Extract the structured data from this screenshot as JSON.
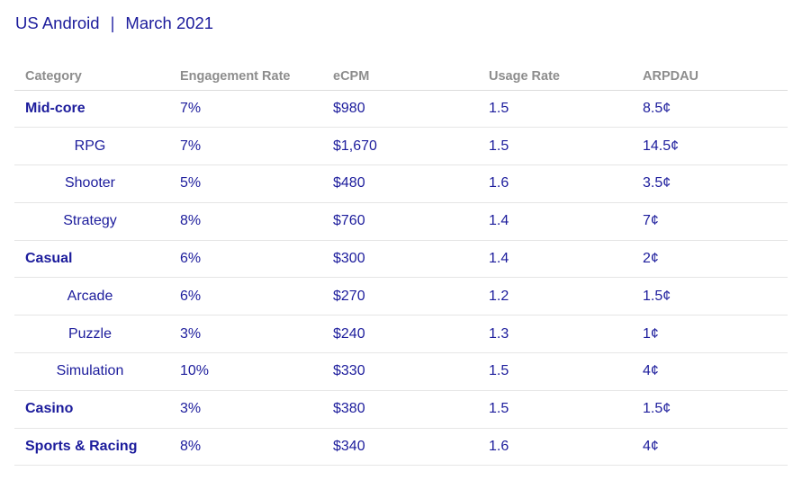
{
  "header": {
    "title_left": "US Android",
    "separator": "|",
    "title_right": "March 2021"
  },
  "colors": {
    "text_navy": "#1c1c9c",
    "header_gray": "#8d8d8d",
    "divider": "#e6e6e6",
    "background": "#ffffff"
  },
  "chart_data": {
    "type": "table",
    "title": "US Android | March 2021",
    "columns": [
      "Category",
      "Engagement Rate",
      "eCPM",
      "Usage Rate",
      "ARPDAU"
    ],
    "rows": [
      {
        "category": "Mid-core",
        "level": "parent",
        "engagement_rate": "7%",
        "ecpm": "$980",
        "usage_rate": "1.5",
        "arpdau": "8.5¢"
      },
      {
        "category": "RPG",
        "level": "sub",
        "engagement_rate": "7%",
        "ecpm": "$1,670",
        "usage_rate": "1.5",
        "arpdau": "14.5¢"
      },
      {
        "category": "Shooter",
        "level": "sub",
        "engagement_rate": "5%",
        "ecpm": "$480",
        "usage_rate": "1.6",
        "arpdau": "3.5¢"
      },
      {
        "category": "Strategy",
        "level": "sub",
        "engagement_rate": "8%",
        "ecpm": "$760",
        "usage_rate": "1.4",
        "arpdau": "7¢"
      },
      {
        "category": "Casual",
        "level": "parent",
        "engagement_rate": "6%",
        "ecpm": "$300",
        "usage_rate": "1.4",
        "arpdau": "2¢"
      },
      {
        "category": "Arcade",
        "level": "sub",
        "engagement_rate": "6%",
        "ecpm": "$270",
        "usage_rate": "1.2",
        "arpdau": "1.5¢"
      },
      {
        "category": "Puzzle",
        "level": "sub",
        "engagement_rate": "3%",
        "ecpm": "$240",
        "usage_rate": "1.3",
        "arpdau": "1¢"
      },
      {
        "category": "Simulation",
        "level": "sub",
        "engagement_rate": "10%",
        "ecpm": "$330",
        "usage_rate": "1.5",
        "arpdau": "4¢"
      },
      {
        "category": "Casino",
        "level": "parent",
        "engagement_rate": "3%",
        "ecpm": "$380",
        "usage_rate": "1.5",
        "arpdau": "1.5¢"
      },
      {
        "category": "Sports & Racing",
        "level": "parent",
        "engagement_rate": "8%",
        "ecpm": "$340",
        "usage_rate": "1.6",
        "arpdau": "4¢"
      }
    ]
  }
}
